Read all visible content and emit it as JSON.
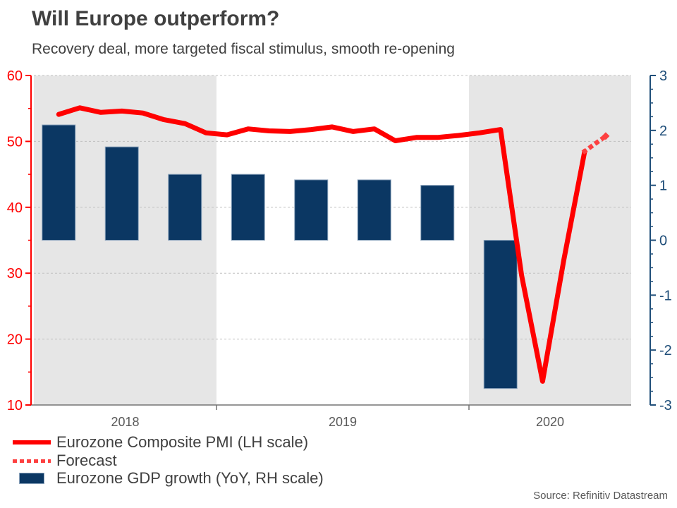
{
  "header": {
    "title": "Will Europe outperform?",
    "subtitle": "Recovery deal, more targeted fiscal stimulus, smooth re-opening"
  },
  "legend": {
    "pmi_label": "Eurozone Composite PMI (LH scale)",
    "forecast_label": "Forecast",
    "gdp_label": "Eurozone GDP growth (YoY, RH scale)"
  },
  "source_text": "Source: Refinitiv Datastream",
  "colors": {
    "line": "#ff0000",
    "forecast": "#fd4040",
    "bar_fill": "#0b3763",
    "bar_border": "#8ba3bc",
    "left_axis": "#ff0000",
    "right_axis": "#1f4e79",
    "x_axis": "#737373",
    "band": "#e6e6e6",
    "grid": "#c0c0c0",
    "year_label": "#595959"
  },
  "chart_data": {
    "type": "combo",
    "title": "Will Europe outperform?",
    "subtitle": "Recovery deal, more targeted fiscal stimulus, smooth re-opening",
    "grid": "horizontal-dashed",
    "left_axis": {
      "side": "left",
      "range": [
        10,
        60
      ],
      "major_ticks": [
        60,
        50,
        40,
        30,
        20,
        10
      ],
      "minor_step": 5,
      "used_by": "Eurozone Composite PMI"
    },
    "right_axis": {
      "side": "right",
      "range": [
        -3,
        3
      ],
      "major_ticks": [
        3,
        2,
        1,
        0,
        -1,
        -2,
        -3
      ],
      "minor_step": 0.25,
      "used_by": "Eurozone GDP growth"
    },
    "x_axis": {
      "year_labels": [
        "2018",
        "2019",
        "2020"
      ],
      "shaded_years": [
        2018,
        2020
      ],
      "visible_start": 2018.33,
      "visible_end": 2020.64
    },
    "series": [
      {
        "name": "Eurozone Composite PMI (LH scale)",
        "type": "line",
        "style": "solid",
        "axis": "left",
        "points": [
          [
            "2018-05",
            54.1
          ],
          [
            "2018-06",
            55.1
          ],
          [
            "2018-07",
            54.4
          ],
          [
            "2018-08",
            54.6
          ],
          [
            "2018-09",
            54.3
          ],
          [
            "2018-10",
            53.3
          ],
          [
            "2018-11",
            52.7
          ],
          [
            "2018-12",
            51.3
          ],
          [
            "2019-01",
            51.0
          ],
          [
            "2019-02",
            51.9
          ],
          [
            "2019-03",
            51.6
          ],
          [
            "2019-04",
            51.5
          ],
          [
            "2019-05",
            51.8
          ],
          [
            "2019-06",
            52.2
          ],
          [
            "2019-07",
            51.5
          ],
          [
            "2019-08",
            51.9
          ],
          [
            "2019-09",
            50.1
          ],
          [
            "2019-10",
            50.6
          ],
          [
            "2019-11",
            50.6
          ],
          [
            "2019-12",
            50.9
          ],
          [
            "2020-01",
            51.3
          ],
          [
            "2020-02",
            51.8
          ],
          [
            "2020-03",
            29.7
          ],
          [
            "2020-04",
            13.6
          ],
          [
            "2020-05",
            31.9
          ],
          [
            "2020-06",
            48.5
          ]
        ]
      },
      {
        "name": "Forecast",
        "type": "line",
        "style": "dotted",
        "axis": "left",
        "points": [
          [
            "2020-06",
            48.5
          ],
          [
            "2020-07",
            50.8
          ]
        ]
      },
      {
        "name": "Eurozone GDP growth (YoY, RH scale)",
        "type": "bar",
        "axis": "right",
        "points": [
          [
            "2018-Q2",
            2.1
          ],
          [
            "2018-Q3",
            1.7
          ],
          [
            "2018-Q4",
            1.2
          ],
          [
            "2019-Q1",
            1.2
          ],
          [
            "2019-Q2",
            1.1
          ],
          [
            "2019-Q3",
            1.1
          ],
          [
            "2019-Q4",
            1.0
          ],
          [
            "2020-Q1",
            -2.7
          ]
        ]
      }
    ]
  }
}
